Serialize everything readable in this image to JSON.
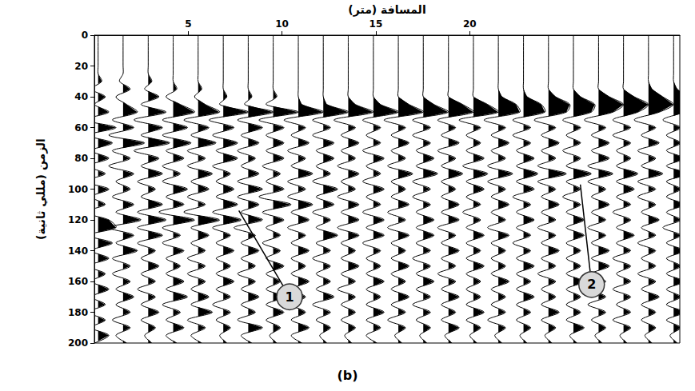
{
  "chart_data": {
    "type": "wiggle",
    "x_label": "المسافة (متر)",
    "y_label": "الزمن (مللي ثانية)",
    "caption": "(b)",
    "xlim": [
      0,
      31.2
    ],
    "xticks": [
      5,
      10,
      15,
      20
    ],
    "ylim": [
      0,
      200
    ],
    "yticks": [
      0,
      20,
      40,
      60,
      80,
      100,
      120,
      140,
      160,
      180,
      200
    ],
    "grid": false,
    "color": "#000000",
    "traces": {
      "x": [
        0.2,
        1.53,
        2.87,
        4.2,
        5.53,
        6.87,
        8.2,
        9.53,
        10.87,
        12.2,
        13.53,
        14.87,
        16.2,
        17.53,
        18.87,
        20.2,
        21.53,
        22.87,
        24.2,
        25.53,
        26.87,
        28.2,
        29.53,
        30.87
      ],
      "time": [
        0,
        5,
        10,
        15,
        20,
        25,
        30,
        35,
        40,
        45,
        50,
        55,
        60,
        65,
        70,
        75,
        80,
        85,
        90,
        95,
        100,
        105,
        110,
        115,
        120,
        125,
        130,
        135,
        140,
        145,
        150,
        155,
        160,
        165,
        170,
        175,
        180,
        185,
        190,
        195,
        200
      ],
      "amplitudes": [
        [
          0,
          0,
          0,
          0,
          0,
          0,
          1,
          -2,
          2,
          -1,
          3,
          -4,
          5,
          -3,
          4,
          -2,
          3,
          -3,
          2,
          -4,
          3,
          -2,
          2,
          -4,
          3,
          5,
          -3,
          4,
          -2,
          3,
          -3,
          2,
          -2,
          3,
          -2,
          2,
          -3,
          2,
          -2,
          3,
          -1
        ],
        [
          0,
          0,
          0,
          0,
          0,
          0,
          -1,
          2,
          -2,
          1,
          4,
          -3,
          3,
          -4,
          6,
          -3,
          2,
          -4,
          3,
          -2,
          2,
          -3,
          3,
          -2,
          5,
          -4,
          3,
          -2,
          4,
          -3,
          2,
          -3,
          2,
          -2,
          3,
          -2,
          2,
          -3,
          2,
          -2,
          1
        ],
        [
          0,
          0,
          0,
          0,
          0,
          0,
          1,
          -1,
          3,
          -2,
          5,
          -4,
          4,
          -2,
          6,
          -4,
          3,
          -2,
          4,
          -3,
          2,
          -2,
          4,
          -3,
          5,
          -3,
          4,
          -3,
          2,
          -2,
          3,
          -2,
          2,
          -3,
          2,
          -2,
          3,
          -2,
          2,
          -1,
          1
        ],
        [
          0,
          0,
          0,
          0,
          0,
          0,
          0,
          1,
          -2,
          2,
          6,
          -3,
          4,
          -3,
          5,
          -2,
          3,
          -3,
          2,
          -3,
          4,
          -2,
          3,
          -4,
          6,
          -3,
          2,
          -3,
          3,
          -2,
          2,
          -2,
          3,
          -2,
          4,
          -3,
          2,
          -2,
          3,
          -2,
          1
        ],
        [
          0,
          0,
          0,
          0,
          0,
          0,
          0,
          1,
          -1,
          2,
          6,
          -4,
          3,
          -2,
          5,
          -3,
          2,
          -3,
          4,
          -2,
          3,
          -3,
          2,
          -4,
          6,
          -2,
          3,
          -2,
          2,
          -3,
          2,
          -3,
          2,
          -2,
          3,
          -2,
          4,
          -3,
          2,
          -2,
          1
        ],
        [
          0,
          0,
          0,
          0,
          0,
          0,
          0,
          0,
          1,
          -1,
          7,
          -4,
          3,
          -3,
          4,
          -2,
          4,
          -3,
          2,
          -2,
          3,
          -2,
          4,
          -3,
          5,
          -3,
          2,
          -2,
          3,
          -2,
          2,
          -2,
          3,
          -2,
          2,
          -3,
          2,
          -2,
          2,
          -1,
          1
        ],
        [
          0,
          0,
          0,
          0,
          0,
          0,
          0,
          0,
          1,
          -1,
          7,
          -3,
          4,
          -2,
          3,
          -3,
          2,
          -2,
          3,
          -3,
          4,
          -3,
          3,
          -2,
          4,
          -4,
          2,
          -2,
          3,
          -2,
          2,
          -3,
          2,
          -2,
          3,
          -2,
          2,
          -3,
          4,
          -2,
          1
        ],
        [
          0,
          0,
          0,
          0,
          0,
          0,
          0,
          0,
          1,
          -2,
          7,
          -4,
          3,
          -2,
          3,
          -2,
          3,
          -3,
          2,
          -2,
          3,
          -4,
          5,
          -3,
          3,
          -2,
          2,
          -3,
          2,
          -2,
          3,
          -2,
          2,
          -2,
          3,
          -2,
          3,
          -2,
          2,
          -1,
          1
        ],
        [
          0,
          0,
          0,
          0,
          0,
          0,
          0,
          0,
          0,
          1,
          7,
          -4,
          2,
          -2,
          3,
          -3,
          2,
          -2,
          4,
          -3,
          2,
          -3,
          4,
          -2,
          3,
          -3,
          2,
          -2,
          3,
          -2,
          2,
          -2,
          3,
          -2,
          2,
          -2,
          2,
          -2,
          3,
          -2,
          1
        ],
        [
          0,
          0,
          0,
          0,
          0,
          0,
          0,
          0,
          0,
          1,
          7,
          -3,
          2,
          -3,
          3,
          -2,
          3,
          -2,
          2,
          -3,
          4,
          -2,
          3,
          -3,
          2,
          -2,
          4,
          -2,
          2,
          -3,
          2,
          -2,
          2,
          -2,
          3,
          -3,
          2,
          -2,
          2,
          -1,
          1
        ],
        [
          0,
          0,
          0,
          0,
          0,
          0,
          0,
          0,
          0,
          2,
          7,
          -4,
          2,
          -2,
          3,
          -2,
          2,
          -3,
          3,
          -2,
          2,
          -3,
          3,
          -2,
          3,
          -3,
          3,
          -2,
          2,
          -2,
          3,
          -2,
          2,
          -3,
          2,
          -2,
          2,
          -2,
          2,
          -1,
          1
        ],
        [
          0,
          0,
          0,
          0,
          0,
          0,
          0,
          0,
          0,
          2,
          7,
          -3,
          2,
          -2,
          2,
          -3,
          3,
          -2,
          2,
          -3,
          3,
          -2,
          2,
          -3,
          3,
          -2,
          3,
          -3,
          2,
          -2,
          2,
          -2,
          3,
          -2,
          2,
          -2,
          3,
          -2,
          2,
          -2,
          1
        ],
        [
          0,
          0,
          0,
          0,
          0,
          0,
          0,
          0,
          0,
          3,
          7,
          -4,
          2,
          -2,
          3,
          -2,
          2,
          -3,
          4,
          -2,
          2,
          -2,
          3,
          -3,
          2,
          -3,
          3,
          -2,
          2,
          -2,
          3,
          -2,
          2,
          -2,
          3,
          -2,
          2,
          -3,
          2,
          -1,
          1
        ],
        [
          0,
          0,
          0,
          0,
          0,
          0,
          0,
          0,
          0,
          3,
          7,
          -3,
          2,
          -3,
          2,
          -2,
          3,
          -2,
          4,
          -3,
          2,
          -3,
          2,
          -2,
          3,
          -2,
          3,
          -2,
          2,
          -3,
          2,
          -2,
          3,
          -2,
          2,
          -3,
          2,
          -2,
          2,
          -1,
          1
        ],
        [
          0,
          0,
          0,
          0,
          0,
          0,
          0,
          0,
          0,
          4,
          7,
          -3,
          2,
          -2,
          3,
          -3,
          2,
          -2,
          4,
          -2,
          2,
          -2,
          3,
          -2,
          3,
          -3,
          2,
          -2,
          3,
          -2,
          2,
          -3,
          2,
          -2,
          3,
          -2,
          2,
          -2,
          3,
          -1,
          1
        ],
        [
          0,
          0,
          0,
          0,
          0,
          0,
          0,
          0,
          0,
          4,
          7,
          -4,
          2,
          -2,
          2,
          -2,
          3,
          -3,
          4,
          -2,
          3,
          -2,
          2,
          -3,
          2,
          -2,
          3,
          -2,
          2,
          -2,
          3,
          -2,
          2,
          -2,
          2,
          -2,
          3,
          -2,
          2,
          -1,
          1
        ],
        [
          0,
          0,
          0,
          0,
          0,
          0,
          0,
          0,
          1,
          5,
          6,
          -4,
          2,
          -2,
          3,
          -2,
          2,
          -3,
          4,
          -3,
          2,
          -2,
          3,
          -2,
          2,
          -3,
          3,
          -2,
          2,
          -2,
          2,
          -2,
          3,
          -2,
          2,
          -2,
          2,
          -3,
          2,
          -1,
          1
        ],
        [
          0,
          0,
          0,
          0,
          0,
          0,
          0,
          0,
          1,
          5,
          6,
          -3,
          2,
          -3,
          2,
          -2,
          3,
          -2,
          4,
          -2,
          3,
          -3,
          2,
          -2,
          3,
          -2,
          2,
          -3,
          2,
          -2,
          3,
          -2,
          2,
          -2,
          3,
          -2,
          2,
          -2,
          2,
          -1,
          1
        ],
        [
          0,
          0,
          0,
          0,
          0,
          0,
          0,
          0,
          2,
          6,
          5,
          -4,
          2,
          -2,
          3,
          -2,
          2,
          -3,
          5,
          -3,
          2,
          -2,
          3,
          -2,
          2,
          -3,
          2,
          -2,
          3,
          -2,
          2,
          -3,
          2,
          -2,
          2,
          -2,
          3,
          -2,
          2,
          -1,
          1
        ],
        [
          0,
          0,
          0,
          0,
          0,
          0,
          0,
          0,
          2,
          6,
          5,
          -3,
          2,
          -2,
          2,
          -3,
          2,
          -2,
          5,
          -2,
          2,
          -3,
          2,
          -2,
          3,
          -2,
          3,
          -2,
          2,
          -2,
          2,
          -2,
          3,
          -2,
          2,
          -2,
          2,
          -2,
          3,
          -1,
          1
        ],
        [
          0,
          0,
          0,
          0,
          0,
          0,
          0,
          0,
          3,
          7,
          4,
          -4,
          2,
          -2,
          3,
          -2,
          3,
          -3,
          4,
          -3,
          2,
          -2,
          3,
          -2,
          2,
          -3,
          2,
          -2,
          3,
          -2,
          3,
          -2,
          2,
          -2,
          2,
          -3,
          2,
          -2,
          2,
          -1,
          1
        ],
        [
          0,
          0,
          0,
          0,
          0,
          0,
          0,
          0,
          3,
          7,
          4,
          -3,
          2,
          -3,
          2,
          -2,
          2,
          -2,
          4,
          -2,
          3,
          -2,
          2,
          -3,
          2,
          -2,
          3,
          -2,
          2,
          -3,
          2,
          -2,
          2,
          -3,
          2,
          -2,
          2,
          -3,
          2,
          -1,
          1
        ],
        [
          0,
          0,
          0,
          0,
          0,
          0,
          0,
          1,
          4,
          7,
          3,
          -4,
          2,
          -2,
          3,
          -3,
          2,
          -2,
          4,
          -3,
          2,
          -3,
          2,
          -2,
          3,
          -2,
          2,
          -3,
          2,
          -2,
          2,
          -3,
          2,
          -2,
          3,
          -2,
          2,
          -2,
          2,
          -1,
          1
        ],
        [
          0,
          0,
          0,
          0,
          0,
          0,
          0,
          1,
          4,
          7,
          3,
          -3,
          2,
          -2,
          2,
          -2,
          3,
          -2,
          4,
          -2,
          2,
          -2,
          3,
          -2,
          2,
          -3,
          2,
          -2,
          3,
          -2,
          2,
          -2,
          3,
          -2,
          2,
          -2,
          3,
          -2,
          2,
          -1,
          1
        ]
      ]
    },
    "annotations": [
      {
        "text": "1",
        "x": 7.7,
        "y": 114,
        "label_x": 10.4,
        "label_y": 170
      },
      {
        "text": "2",
        "x": 25.9,
        "y": 97,
        "label_x": 26.5,
        "label_y": 162
      }
    ]
  }
}
